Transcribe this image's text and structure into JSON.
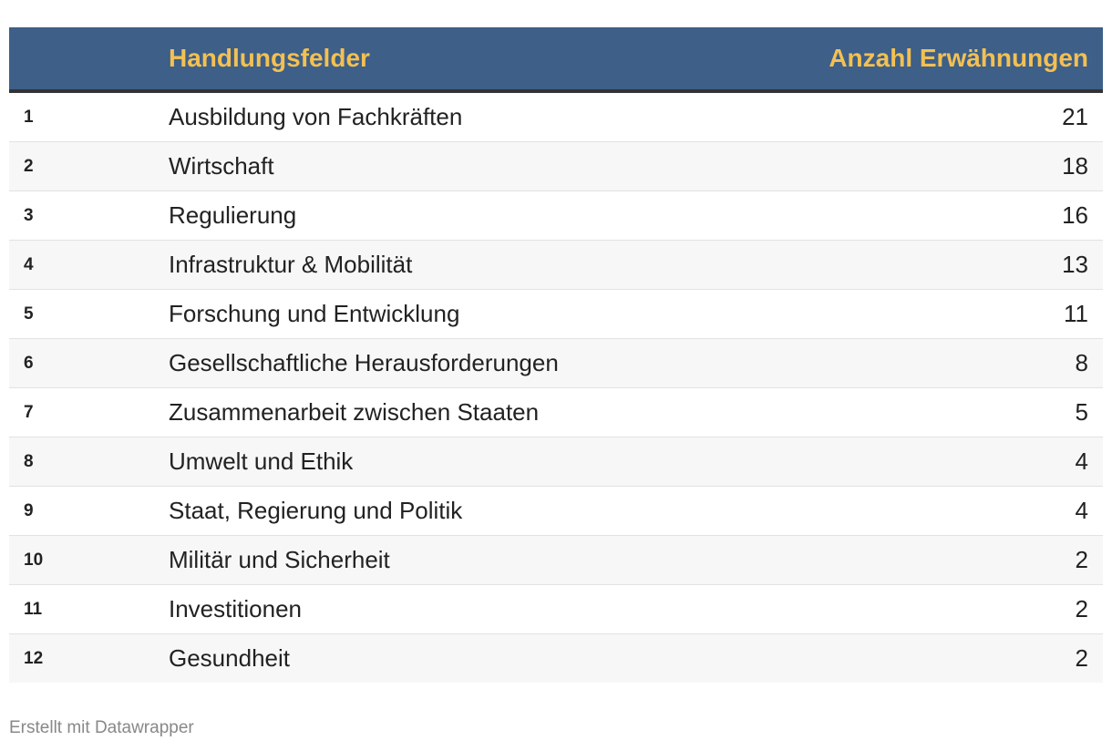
{
  "header_color": "#3d5f88",
  "header_text_color": "#f3c052",
  "row_alt_color": "#f7f7f7",
  "chart_data": {
    "type": "table",
    "columns": [
      "",
      "Handlungsfelder",
      "Anzahl Erwähnungen"
    ],
    "rows": [
      {
        "rank": "1",
        "name": "Ausbildung von Fachkräften",
        "count": 21
      },
      {
        "rank": "2",
        "name": "Wirtschaft",
        "count": 18
      },
      {
        "rank": "3",
        "name": "Regulierung",
        "count": 16
      },
      {
        "rank": "4",
        "name": "Infrastruktur & Mobilität",
        "count": 13
      },
      {
        "rank": "5",
        "name": "Forschung und Entwicklung",
        "count": 11
      },
      {
        "rank": "6",
        "name": "Gesellschaftliche Herausforderungen",
        "count": 8
      },
      {
        "rank": "7",
        "name": "Zusammenarbeit zwischen Staaten",
        "count": 5
      },
      {
        "rank": "8",
        "name": "Umwelt und Ethik",
        "count": 4
      },
      {
        "rank": "9",
        "name": "Staat, Regierung und Politik",
        "count": 4
      },
      {
        "rank": "10",
        "name": "Militär und Sicherheit",
        "count": 2
      },
      {
        "rank": "11",
        "name": "Investitionen",
        "count": 2
      },
      {
        "rank": "12",
        "name": "Gesundheit",
        "count": 2
      }
    ]
  },
  "footer": {
    "credit": "Erstellt mit Datawrapper"
  }
}
